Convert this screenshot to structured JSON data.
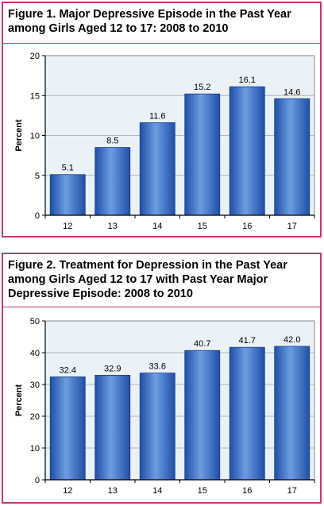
{
  "colors": {
    "border": "#c9366f",
    "bar": "#1f4fa8",
    "bar_highlight": "#6f9be0",
    "plot_bg": "#eaf2f8"
  },
  "chart_data": [
    {
      "type": "bar",
      "title": "Figure 1. Major Depressive Episode in the Past Year among Girls Aged 12 to 17: 2008 to 2010",
      "title_lines": [
        "Figure 1. Major Depressive Episode in the Past Year",
        "among Girls Aged 12 to 17: 2008 to 2010"
      ],
      "categories": [
        "12",
        "13",
        "14",
        "15",
        "16",
        "17"
      ],
      "values": [
        5.1,
        8.5,
        11.6,
        15.2,
        16.1,
        14.6
      ],
      "data_labels": [
        "5.1",
        "8.5",
        "11.6",
        "15.2",
        "16.1",
        "14.6"
      ],
      "ylabel": "Percent",
      "xlabel": "",
      "ylim": [
        0,
        20
      ],
      "yticks": [
        0,
        5,
        10,
        15,
        20
      ],
      "grid": true
    },
    {
      "type": "bar",
      "title": "Figure 2. Treatment for Depression in the Past Year among Girls Aged 12 to 17 with Past Year Major Depressive Episode: 2008 to 2010",
      "title_lines": [
        "Figure 2. Treatment for Depression in the Past Year",
        "among Girls Aged 12 to 17 with Past Year Major",
        "Depressive Episode: 2008 to 2010"
      ],
      "categories": [
        "12",
        "13",
        "14",
        "15",
        "16",
        "17"
      ],
      "values": [
        32.4,
        32.9,
        33.6,
        40.7,
        41.7,
        42.0
      ],
      "data_labels": [
        "32.4",
        "32.9",
        "33.6",
        "40.7",
        "41.7",
        "42.0"
      ],
      "ylabel": "Percent",
      "xlabel": "",
      "ylim": [
        0,
        50
      ],
      "yticks": [
        0,
        10,
        20,
        30,
        40,
        50
      ],
      "grid": true
    }
  ]
}
